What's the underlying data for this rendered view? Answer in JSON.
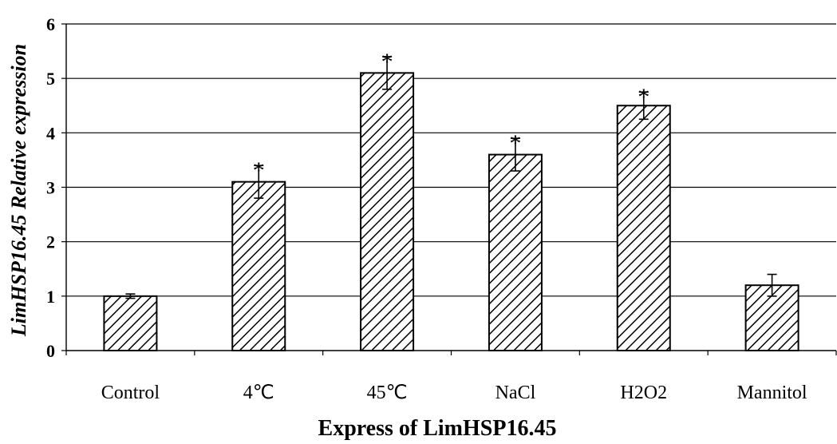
{
  "chart_data": {
    "type": "bar",
    "xlabel": "Express of LimHSP16.45",
    "ylabel": "LimHSP16.45 Relative expression",
    "ylim": [
      0,
      6
    ],
    "yticks": [
      "0",
      "1",
      "2",
      "3",
      "4",
      "5",
      "6"
    ],
    "grid": true,
    "categories": [
      "Control",
      "4℃",
      "45℃",
      "NaCl",
      "H2O2",
      "Mannitol"
    ],
    "values": [
      1.0,
      3.1,
      5.1,
      3.6,
      4.5,
      1.2
    ],
    "errors": [
      0.04,
      0.3,
      0.3,
      0.3,
      0.25,
      0.2
    ],
    "significance": [
      "",
      "*",
      "*",
      "*",
      "*",
      ""
    ],
    "bar_fill": "hatched",
    "colors": {
      "bar_stroke": "#000000",
      "hatch": "#000000",
      "grid": "#000000",
      "background": "#ffffff"
    }
  }
}
